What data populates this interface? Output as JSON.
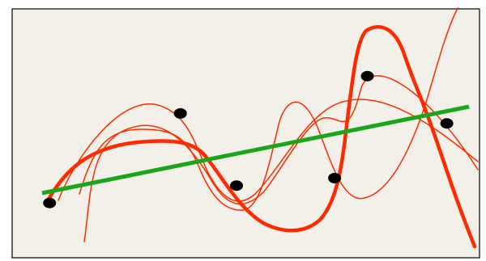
{
  "diagram": {
    "background_color": "#f2f0e8",
    "border_color": "#000000",
    "trend_line_color": "#1aa51a",
    "curve_color": "#ff2a00",
    "point_color": "#000000",
    "points": [
      {
        "x": 0.08,
        "y": 0.22
      },
      {
        "x": 0.36,
        "y": 0.58
      },
      {
        "x": 0.48,
        "y": 0.29
      },
      {
        "x": 0.69,
        "y": 0.32
      },
      {
        "x": 0.76,
        "y": 0.73
      },
      {
        "x": 0.93,
        "y": 0.54
      }
    ]
  }
}
